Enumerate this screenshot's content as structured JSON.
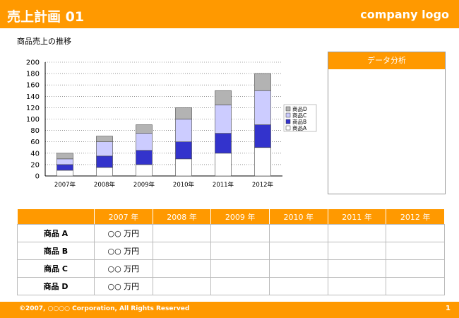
{
  "header": {
    "title": "売上計画 01",
    "logo": "company logo"
  },
  "section": {
    "subtitle": "商品売上の推移"
  },
  "panel": {
    "title": "データ分析"
  },
  "colors": {
    "accent": "#ff9900",
    "productA": "#ffffff",
    "productB": "#3333cc",
    "productC": "#ccccff",
    "productD": "#b3b3b3"
  },
  "chart_data": {
    "type": "bar",
    "stacked": true,
    "categories": [
      "2007年",
      "2008年",
      "2009年",
      "2010年",
      "2011年",
      "2012年"
    ],
    "series": [
      {
        "name": "商品A",
        "values": [
          10,
          15,
          20,
          30,
          40,
          50
        ]
      },
      {
        "name": "商品B",
        "values": [
          10,
          20,
          25,
          30,
          35,
          40
        ]
      },
      {
        "name": "商品C",
        "values": [
          10,
          25,
          30,
          40,
          50,
          60
        ]
      },
      {
        "name": "商品D",
        "values": [
          10,
          10,
          15,
          20,
          25,
          30
        ]
      }
    ],
    "ylim": [
      0,
      200
    ],
    "yticks": [
      0,
      20,
      40,
      60,
      80,
      100,
      120,
      140,
      160,
      180,
      200
    ],
    "grid": true,
    "legend": "right"
  },
  "table": {
    "headers": [
      "",
      "2007 年",
      "2008 年",
      "2009 年",
      "2010 年",
      "2011 年",
      "2012 年"
    ],
    "rows": [
      {
        "label": "商品 A",
        "cells": [
          "○○ 万円",
          "",
          "",
          "",
          "",
          ""
        ]
      },
      {
        "label": "商品 B",
        "cells": [
          "○○ 万円",
          "",
          "",
          "",
          "",
          ""
        ]
      },
      {
        "label": "商品 C",
        "cells": [
          "○○ 万円",
          "",
          "",
          "",
          "",
          ""
        ]
      },
      {
        "label": "商品 D",
        "cells": [
          "○○ 万円",
          "",
          "",
          "",
          "",
          ""
        ]
      }
    ]
  },
  "footer": {
    "copyright": "©2007, ○○○○ Corporation, All Rights Reserved",
    "page": "1"
  }
}
